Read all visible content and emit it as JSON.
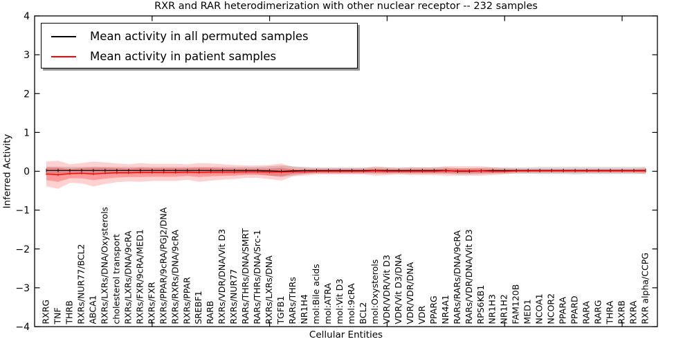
{
  "title": "RXR and RAR heterodimerization with other nuclear receptor -- 232 samples",
  "axes": {
    "xlabel": "Cellular Entities",
    "ylabel": "Inferred Activity"
  },
  "legend": {
    "items": [
      {
        "label": "Mean activity in all permuted samples",
        "color": "#000000"
      },
      {
        "label": "Mean activity in patient samples",
        "color": "#ff0000"
      }
    ]
  },
  "chart_data": {
    "type": "line",
    "title": "RXR and RAR heterodimerization with other nuclear receptor -- 232 samples",
    "xlabel": "Cellular Entities",
    "ylabel": "Inferred Activity",
    "ylim": [
      -4,
      4
    ],
    "yticks": [
      4,
      3,
      2,
      1,
      0,
      -1,
      -2,
      -3,
      -4
    ],
    "x_major_tick_indices": [
      9,
      19,
      29,
      39,
      49
    ],
    "grid": false,
    "legend_position": "upper left",
    "n_samples": 232,
    "categories": [
      "RXRG",
      "TNF",
      "THRB",
      "RXRs/NUR77/BCL2",
      "ABCA1",
      "RXRs/LXRs/DNA/Oxysterols",
      "cholesterol transport",
      "RXRs/LXRs/DNA/9cRA",
      "RXRs/FXR/9cRA/MED1",
      "RXRs/FXR",
      "RXRs/PPAR/9cRA/PGJ2/DNA",
      "RXRs/RXRs/DNA/9cRA",
      "RXRs/PPAR",
      "SREBF1",
      "RARB",
      "RXRs/VDR/DNA/Vit D3",
      "RXRs/NUR77",
      "RARs/THRs/DNA/SMRT",
      "RARs/THRs/DNA/Src-1",
      "RXRs/LXRs/DNA",
      "TGFB1",
      "RARs/THRs",
      "NR1H4",
      "mol:Bile acids",
      "mol:ATRA",
      "mol:Vit D3",
      "mol:9cRA",
      "BCL2",
      "mol:Oxysterols",
      "VDR/VDR/Vit D3",
      "VDR/Vit D3/DNA",
      "VDR/VDR/DNA",
      "VDR",
      "PPARG",
      "NR4A1",
      "RARs/RARs/DNA/9cRA",
      "RARs/VDR/DNA/Vit D3",
      "RPS6KB1",
      "NR1H3",
      "NR1H2",
      "FAM120B",
      "MED1",
      "NCOA1",
      "NCOR2",
      "PPARA",
      "PPARD",
      "RARA",
      "RARG",
      "THRA",
      "RXRB",
      "RXRA",
      "RXR alpha/CCPG"
    ],
    "series": [
      {
        "name": "Mean activity in all permuted samples",
        "color": "#000000",
        "band_color": "#888888",
        "mean": [
          0.02,
          0.02,
          0.02,
          0.02,
          0.02,
          0.02,
          0.02,
          0.02,
          0.02,
          0.02,
          0.02,
          0.02,
          0.02,
          0.02,
          0.02,
          0.02,
          0.02,
          0.02,
          0.02,
          0.01,
          0.0,
          0.01,
          0.02,
          0.02,
          0.02,
          0.02,
          0.02,
          0.02,
          0.02,
          0.02,
          0.02,
          0.02,
          0.02,
          0.02,
          0.02,
          0.0,
          0.0,
          0.01,
          0.02,
          0.02,
          0.02,
          0.02,
          0.02,
          0.02,
          0.02,
          0.02,
          0.02,
          0.02,
          0.02,
          0.02,
          0.02,
          0.02
        ],
        "std": [
          0.1,
          0.1,
          0.09,
          0.09,
          0.1,
          0.09,
          0.09,
          0.09,
          0.09,
          0.09,
          0.09,
          0.09,
          0.09,
          0.09,
          0.09,
          0.09,
          0.09,
          0.09,
          0.09,
          0.12,
          0.15,
          0.12,
          0.09,
          0.08,
          0.08,
          0.08,
          0.08,
          0.08,
          0.08,
          0.08,
          0.08,
          0.08,
          0.08,
          0.08,
          0.08,
          0.08,
          0.08,
          0.08,
          0.08,
          0.08,
          0.08,
          0.08,
          0.09,
          0.09,
          0.09,
          0.1,
          0.09,
          0.09,
          0.09,
          0.09,
          0.09,
          0.09
        ]
      },
      {
        "name": "Mean activity in patient samples",
        "color": "#ff0000",
        "band_color": "#ff0000",
        "mean": [
          -0.07,
          -0.09,
          -0.06,
          -0.05,
          -0.07,
          -0.05,
          -0.04,
          -0.04,
          -0.03,
          -0.03,
          -0.03,
          -0.03,
          -0.02,
          -0.03,
          -0.02,
          -0.02,
          -0.02,
          -0.01,
          -0.01,
          -0.02,
          -0.02,
          -0.01,
          -0.01,
          0.0,
          0.0,
          0.0,
          0.0,
          0.0,
          0.01,
          0.0,
          0.0,
          0.0,
          0.0,
          0.0,
          0.01,
          0.01,
          0.01,
          0.01,
          0.0,
          0.0,
          0.01,
          0.01,
          0.01,
          0.01,
          0.01,
          0.01,
          0.01,
          0.01,
          0.01,
          0.01,
          0.01,
          0.01
        ],
        "std": [
          0.16,
          0.18,
          0.12,
          0.13,
          0.16,
          0.14,
          0.12,
          0.11,
          0.12,
          0.11,
          0.11,
          0.11,
          0.1,
          0.12,
          0.11,
          0.1,
          0.09,
          0.08,
          0.08,
          0.09,
          0.11,
          0.06,
          0.05,
          0.04,
          0.04,
          0.04,
          0.04,
          0.04,
          0.06,
          0.05,
          0.04,
          0.05,
          0.05,
          0.05,
          0.06,
          0.06,
          0.06,
          0.06,
          0.05,
          0.04,
          0.03,
          0.03,
          0.03,
          0.03,
          0.03,
          0.03,
          0.03,
          0.03,
          0.03,
          0.03,
          0.03,
          0.04
        ]
      }
    ]
  }
}
